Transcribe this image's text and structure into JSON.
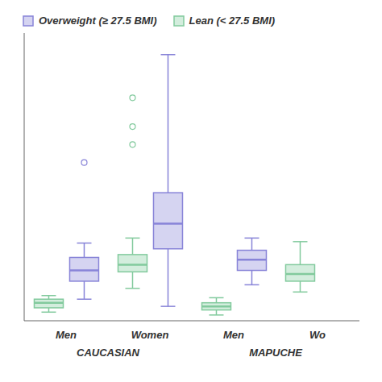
{
  "chart_data": {
    "type": "box",
    "categories": [
      "Men",
      "Women",
      "Men",
      "Wo"
    ],
    "category_groups": [
      "CAUCASIAN",
      "CAUCASIAN",
      "MAPUCHE",
      "MAPUCHE"
    ],
    "series": [
      {
        "name": "Overweight (≥ 27.5 BMI)",
        "values": [
          {
            "whislo": 3.0,
            "q1": 5.5,
            "med": 7.0,
            "q3": 8.8,
            "whishi": 10.8,
            "fliers": [
              22.0
            ]
          },
          {
            "whislo": 2.0,
            "q1": 10.0,
            "med": 13.5,
            "q3": 17.8,
            "whishi": 37.0,
            "fliers": []
          },
          {
            "whislo": 5.0,
            "q1": 7.0,
            "med": 8.5,
            "q3": 9.8,
            "whishi": 11.5,
            "fliers": []
          },
          null
        ]
      },
      {
        "name": "Lean (< 27.5 BMI)",
        "values": [
          {
            "whislo": 1.2,
            "q1": 1.8,
            "med": 2.5,
            "q3": 3.0,
            "whishi": 3.5,
            "fliers": []
          },
          {
            "whislo": 4.5,
            "q1": 6.8,
            "med": 7.8,
            "q3": 9.2,
            "whishi": 11.5,
            "fliers": [
              24.5,
              27.0,
              31.0
            ]
          },
          {
            "whislo": 0.8,
            "q1": 1.5,
            "med": 2.0,
            "q3": 2.5,
            "whishi": 3.2,
            "fliers": []
          },
          {
            "whislo": 4.0,
            "q1": 5.5,
            "med": 6.5,
            "q3": 7.8,
            "whishi": 11.0,
            "fliers": []
          }
        ]
      }
    ],
    "ylim": [
      0,
      40
    ],
    "tick_labels": "x",
    "legend": "upper left"
  }
}
